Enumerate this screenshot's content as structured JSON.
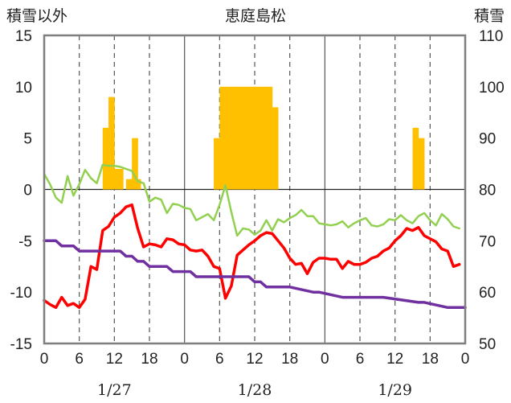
{
  "chart_data": {
    "type": "line",
    "title": "恵庭島松",
    "left_axis_label": "積雪以外",
    "right_axis_label": "積雪",
    "left_ylim": [
      -15,
      15
    ],
    "left_yticks": [
      15,
      10,
      5,
      0,
      -5,
      -10,
      -15
    ],
    "right_ylim": [
      50,
      110
    ],
    "right_yticks": [
      110,
      100,
      90,
      80,
      70,
      60,
      50
    ],
    "x_range_hours": [
      0,
      72
    ],
    "x_tick_labels": [
      "0",
      "6",
      "12",
      "18",
      "0",
      "6",
      "12",
      "18",
      "0",
      "6",
      "12",
      "18",
      "0"
    ],
    "date_labels": [
      "1/27",
      "1/28",
      "1/29"
    ],
    "grid": "vertical dashed at 6-hour marks, solid at day boundaries, zero line",
    "colors": {
      "temperature": "#ff0000",
      "wind_like": "#92d050",
      "snow_depth": "#7030a0",
      "snowfall": "#ffc000"
    },
    "series": [
      {
        "key": "snowfall",
        "type": "bar",
        "axis": "left",
        "x": [
          10,
          10.5,
          11,
          11.5,
          12,
          12.5,
          13,
          14,
          14.5,
          15,
          15.5,
          16,
          29,
          29.5,
          30,
          30.5,
          31,
          31.5,
          32,
          32.5,
          33,
          33.5,
          34,
          34.5,
          35,
          35.5,
          36,
          36.5,
          37,
          37.5,
          38,
          38.5,
          39,
          39.5,
          63,
          63.5,
          64,
          64.5
        ],
        "values": [
          6,
          6,
          9,
          9,
          2,
          2,
          2,
          1,
          1,
          5,
          5,
          1,
          5,
          5,
          10,
          10,
          10,
          10,
          10,
          10,
          10,
          10,
          10,
          10,
          10,
          10,
          10,
          10,
          10,
          10,
          10,
          10,
          8,
          8,
          6,
          6,
          5,
          5
        ]
      },
      {
        "key": "wind_like",
        "type": "line",
        "axis": "left",
        "x": [
          0,
          1,
          2,
          3,
          4,
          5,
          6,
          7,
          8,
          9,
          10,
          11,
          12,
          13,
          14,
          15,
          16,
          17,
          18,
          19,
          20,
          21,
          22,
          23,
          24,
          25,
          26,
          27,
          28,
          29,
          30,
          31,
          32,
          33,
          34,
          35,
          36,
          37,
          38,
          39,
          40,
          41,
          42,
          43,
          44,
          45,
          46,
          47,
          48,
          49,
          50,
          51,
          52,
          53,
          54,
          55,
          56,
          57,
          58,
          59,
          60,
          61,
          62,
          63,
          64,
          65,
          66,
          67,
          68,
          69,
          70,
          71
        ],
        "values": [
          1.5,
          0.5,
          -0.8,
          -1.3,
          1.3,
          -0.6,
          0.5,
          1.9,
          1.1,
          0.6,
          2.4,
          2.3,
          2.3,
          2.2,
          2.0,
          1.8,
          0.8,
          0.6,
          -1.2,
          -0.8,
          -1.0,
          -2.3,
          -1.4,
          -1.5,
          -1.8,
          -1.9,
          -3.0,
          -2.7,
          -2.4,
          -3.0,
          -1.5,
          0.4,
          -2.2,
          -4.5,
          -3.8,
          -3.9,
          -4.4,
          -4.0,
          -3.0,
          -4.0,
          -2.9,
          -3.2,
          -2.8,
          -2.5,
          -2.0,
          -2.6,
          -2.6,
          -3.3,
          -3.4,
          -3.5,
          -3.4,
          -3.1,
          -3.7,
          -3.3,
          -3.0,
          -2.8,
          -3.5,
          -3.6,
          -3.4,
          -2.9,
          -3.0,
          -2.5,
          -3.0,
          -3.3,
          -2.6,
          -2.3,
          -3.0,
          -3.5,
          -2.4,
          -2.9,
          -3.6,
          -3.8
        ]
      },
      {
        "key": "temperature",
        "type": "line",
        "axis": "left",
        "x": [
          0,
          1,
          2,
          3,
          4,
          5,
          6,
          7,
          8,
          9,
          10,
          11,
          12,
          13,
          14,
          15,
          16,
          17,
          18,
          19,
          20,
          21,
          22,
          23,
          24,
          25,
          26,
          27,
          28,
          29,
          30,
          31,
          32,
          33,
          34,
          35,
          36,
          37,
          38,
          39,
          40,
          41,
          42,
          43,
          44,
          45,
          46,
          47,
          48,
          49,
          50,
          51,
          52,
          53,
          54,
          55,
          56,
          57,
          58,
          59,
          60,
          61,
          62,
          63,
          64,
          65,
          66,
          67,
          68,
          69,
          70,
          71
        ],
        "values": [
          -10.8,
          -11.2,
          -11.5,
          -10.5,
          -11.3,
          -11.1,
          -11.5,
          -10.7,
          -7.5,
          -7.8,
          -4.0,
          -3.6,
          -2.7,
          -2.3,
          -1.7,
          -1.5,
          -3.8,
          -5.6,
          -5.3,
          -5.4,
          -5.6,
          -4.8,
          -4.9,
          -5.3,
          -5.4,
          -5.9,
          -6.0,
          -5.9,
          -6.5,
          -7.5,
          -7.7,
          -10.6,
          -9.4,
          -6.4,
          -5.9,
          -5.4,
          -5.0,
          -4.5,
          -4.2,
          -4.3,
          -5.0,
          -5.7,
          -6.7,
          -7.3,
          -7.2,
          -8.2,
          -7.1,
          -6.7,
          -6.7,
          -6.8,
          -6.8,
          -7.7,
          -7.0,
          -7.3,
          -7.3,
          -7.1,
          -6.7,
          -6.5,
          -6.0,
          -5.7,
          -5.0,
          -4.5,
          -3.8,
          -4.0,
          -3.7,
          -4.5,
          -4.8,
          -5.1,
          -5.8,
          -6.0,
          -7.5,
          -7.3
        ]
      },
      {
        "key": "snow_depth",
        "type": "line",
        "axis": "right",
        "step": true,
        "x": [
          0,
          2,
          3,
          5,
          6,
          8,
          13,
          14,
          15,
          16,
          17,
          18,
          21,
          22,
          24,
          25,
          26,
          27,
          33,
          34,
          35,
          36,
          37,
          38,
          41,
          42,
          46,
          47,
          51,
          52,
          57,
          58,
          64,
          65,
          69,
          70,
          72
        ],
        "values": [
          70,
          70,
          69,
          69,
          68,
          68,
          68,
          67,
          67,
          66,
          66,
          65,
          65,
          64,
          64,
          64,
          63,
          63,
          63,
          63,
          63,
          62,
          62,
          61,
          61,
          61,
          60,
          60,
          59,
          59,
          59,
          59,
          58,
          58,
          57,
          57,
          57
        ]
      }
    ]
  }
}
